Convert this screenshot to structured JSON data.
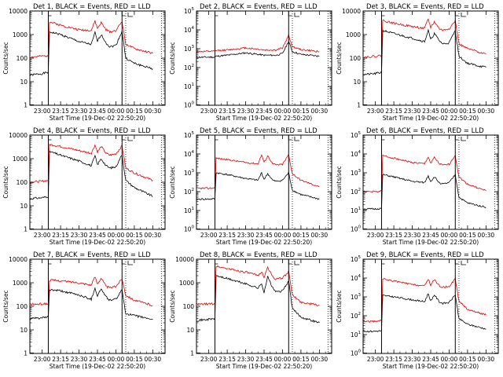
{
  "xlabel": "Start Time (19-Dec-02 22:50:20)",
  "ylabel": "Counts/sec",
  "xticks": [
    "23:00",
    "23:15",
    "23:30",
    "23:45",
    "00:00",
    "00:15",
    "00:30"
  ],
  "series_names": [
    "Events",
    "LLD"
  ],
  "colors": {
    "events": "#000000",
    "lld": "#e00000"
  },
  "chart_data": [
    {
      "type": "line",
      "title": "Det 1, BLACK = Events, RED = LLD",
      "ylim": [
        1,
        10000
      ],
      "log": true,
      "ytick_style": "plain",
      "yticks": [
        "1",
        "10",
        "100",
        "1000",
        "10000"
      ],
      "x": [
        "22:50",
        "23:00",
        "23:05",
        "23:06",
        "23:15",
        "23:30",
        "23:40",
        "23:43",
        "23:45",
        "23:48",
        "23:52",
        "23:55",
        "00:00",
        "00:05",
        "00:08",
        "00:15",
        "00:30"
      ],
      "series": [
        {
          "name": "Events",
          "values": [
            19,
            22,
            25,
            1300,
            1000,
            500,
            380,
            1200,
            520,
            1000,
            450,
            300,
            350,
            1400,
            100,
            60,
            35
          ]
        },
        {
          "name": "LLD",
          "values": [
            110,
            120,
            130,
            3500,
            2500,
            1600,
            1500,
            3800,
            1800,
            3200,
            1600,
            1300,
            1500,
            3600,
            400,
            250,
            160
          ]
        }
      ]
    },
    {
      "type": "line",
      "title": "Det 2, BLACK = Events, RED = LLD",
      "ylim": [
        1,
        100000
      ],
      "log": true,
      "ytick_style": "exp",
      "yticks": [
        "10^0",
        "10^1",
        "10^2",
        "10^3",
        "10^4",
        "10^5"
      ],
      "x": [
        "22:50",
        "23:05",
        "23:06",
        "23:15",
        "23:30",
        "23:40",
        "23:45",
        "23:55",
        "00:00",
        "00:05",
        "00:08",
        "00:15",
        "00:30"
      ],
      "series": [
        {
          "name": "Events",
          "values": [
            350,
            360,
            400,
            450,
            600,
            500,
            450,
            450,
            550,
            2500,
            700,
            500,
            400
          ]
        },
        {
          "name": "LLD",
          "values": [
            700,
            720,
            800,
            850,
            1100,
            950,
            850,
            850,
            1100,
            5000,
            1300,
            900,
            700
          ]
        }
      ]
    },
    {
      "type": "line",
      "title": "Det 3, BLACK = Events, RED = LLD",
      "ylim": [
        1,
        10000
      ],
      "log": true,
      "ytick_style": "plain",
      "yticks": [
        "1",
        "10",
        "100",
        "1000",
        "10000"
      ],
      "x": [
        "22:50",
        "23:00",
        "23:05",
        "23:06",
        "23:15",
        "23:30",
        "23:40",
        "23:43",
        "23:45",
        "23:48",
        "23:52",
        "23:55",
        "00:00",
        "00:05",
        "00:08",
        "00:15",
        "00:30"
      ],
      "series": [
        {
          "name": "Events",
          "values": [
            20,
            22,
            25,
            1500,
            1100,
            700,
            500,
            1500,
            600,
            1100,
            550,
            400,
            450,
            1500,
            120,
            60,
            40
          ]
        },
        {
          "name": "LLD",
          "values": [
            110,
            120,
            130,
            4000,
            3000,
            2200,
            1800,
            4500,
            2000,
            3500,
            1800,
            1500,
            1800,
            3800,
            400,
            250,
            150
          ]
        }
      ]
    },
    {
      "type": "line",
      "title": "Det 4, BLACK = Events, RED = LLD",
      "ylim": [
        1,
        10000
      ],
      "log": true,
      "ytick_style": "plain",
      "yticks": [
        "1",
        "10",
        "100",
        "1000",
        "10000"
      ],
      "x": [
        "22:50",
        "23:00",
        "23:05",
        "23:06",
        "23:15",
        "23:30",
        "23:40",
        "23:43",
        "23:45",
        "23:48",
        "23:52",
        "23:55",
        "00:00",
        "00:05",
        "00:08",
        "00:15",
        "00:30"
      ],
      "series": [
        {
          "name": "Events",
          "values": [
            20,
            22,
            25,
            2000,
            1400,
            800,
            500,
            1300,
            550,
            1000,
            500,
            400,
            450,
            1500,
            120,
            60,
            25
          ]
        },
        {
          "name": "LLD",
          "values": [
            100,
            110,
            120,
            4000,
            3300,
            2200,
            1700,
            3800,
            1900,
            3300,
            1700,
            1400,
            1600,
            3500,
            400,
            250,
            120
          ]
        }
      ]
    },
    {
      "type": "line",
      "title": "Det 5, BLACK = Events, RED = LLD",
      "ylim": [
        1,
        100000
      ],
      "log": true,
      "ytick_style": "exp",
      "yticks": [
        "10^0",
        "10^1",
        "10^2",
        "10^3",
        "10^4",
        "10^5"
      ],
      "x": [
        "22:50",
        "23:00",
        "23:05",
        "23:06",
        "23:15",
        "23:30",
        "23:40",
        "23:43",
        "23:45",
        "23:48",
        "23:52",
        "23:55",
        "00:00",
        "00:05",
        "00:08",
        "00:15",
        "00:30"
      ],
      "series": [
        {
          "name": "Events",
          "values": [
            40,
            40,
            42,
            1000,
            800,
            500,
            400,
            1000,
            450,
            900,
            400,
            350,
            400,
            1000,
            120,
            70,
            40
          ]
        },
        {
          "name": "LLD",
          "values": [
            150,
            150,
            160,
            6000,
            5000,
            3500,
            3000,
            9000,
            3500,
            8000,
            3000,
            2600,
            2800,
            9000,
            900,
            400,
            180
          ]
        }
      ]
    },
    {
      "type": "line",
      "title": "Det 6, BLACK = Events, RED = LLD",
      "ylim": [
        1,
        100000
      ],
      "log": true,
      "ytick_style": "exp",
      "yticks": [
        "10^0",
        "10^1",
        "10^2",
        "10^3",
        "10^4",
        "10^5"
      ],
      "x": [
        "22:50",
        "23:00",
        "23:05",
        "23:06",
        "23:15",
        "23:30",
        "23:40",
        "23:43",
        "23:45",
        "23:48",
        "23:52",
        "23:55",
        "00:00",
        "00:05",
        "00:08",
        "00:15",
        "00:30"
      ],
      "series": [
        {
          "name": "Events",
          "values": [
            12,
            12,
            13,
            800,
            600,
            350,
            300,
            700,
            350,
            600,
            300,
            250,
            300,
            800,
            50,
            25,
            15
          ]
        },
        {
          "name": "LLD",
          "values": [
            100,
            100,
            105,
            8000,
            6000,
            3500,
            3000,
            7000,
            3200,
            6500,
            3000,
            2500,
            2800,
            8500,
            600,
            250,
            110
          ]
        }
      ]
    },
    {
      "type": "line",
      "title": "Det 7, BLACK = Events, RED = LLD",
      "ylim": [
        1,
        10000
      ],
      "log": true,
      "ytick_style": "plain",
      "yticks": [
        "1",
        "10",
        "100",
        "1000",
        "10000"
      ],
      "x": [
        "22:50",
        "23:00",
        "23:05",
        "23:06",
        "23:15",
        "23:30",
        "23:40",
        "23:43",
        "23:45",
        "23:48",
        "23:52",
        "23:55",
        "00:00",
        "00:05",
        "00:08",
        "00:15",
        "00:30"
      ],
      "series": [
        {
          "name": "Events",
          "values": [
            30,
            32,
            35,
            500,
            450,
            300,
            200,
            600,
            280,
            550,
            250,
            180,
            200,
            500,
            50,
            40,
            28
          ]
        },
        {
          "name": "LLD",
          "values": [
            120,
            125,
            130,
            1300,
            1200,
            1000,
            800,
            1800,
            900,
            1600,
            700,
            600,
            700,
            1500,
            300,
            180,
            110
          ]
        }
      ]
    },
    {
      "type": "line",
      "title": "Det 8, BLACK = Events, RED = LLD",
      "ylim": [
        1,
        10000
      ],
      "log": true,
      "ytick_style": "plain",
      "yticks": [
        "1",
        "10",
        "100",
        "1000",
        "10000"
      ],
      "x": [
        "22:50",
        "23:00",
        "23:05",
        "23:06",
        "23:15",
        "23:30",
        "23:40",
        "23:43",
        "23:45",
        "23:48",
        "23:52",
        "23:55",
        "00:00",
        "00:05",
        "00:08",
        "00:15",
        "00:30"
      ],
      "series": [
        {
          "name": "Events",
          "values": [
            25,
            28,
            30,
            2000,
            1500,
            900,
            600,
            900,
            400,
            1800,
            600,
            400,
            450,
            1200,
            80,
            35,
            20
          ]
        },
        {
          "name": "LLD",
          "values": [
            120,
            125,
            130,
            5000,
            4000,
            2800,
            2000,
            3000,
            1700,
            4500,
            1800,
            1400,
            1600,
            3000,
            300,
            150,
            110
          ]
        }
      ]
    },
    {
      "type": "line",
      "title": "Det 9, BLACK = Events, RED = LLD",
      "ylim": [
        1,
        100000
      ],
      "log": true,
      "ytick_style": "exp",
      "yticks": [
        "10^0",
        "10^1",
        "10^2",
        "10^3",
        "10^4",
        "10^5"
      ],
      "x": [
        "22:50",
        "23:00",
        "23:05",
        "23:06",
        "23:15",
        "23:30",
        "23:40",
        "23:43",
        "23:45",
        "23:48",
        "23:52",
        "23:55",
        "00:00",
        "00:05",
        "00:08",
        "00:15",
        "00:30"
      ],
      "series": [
        {
          "name": "Events",
          "values": [
            15,
            15,
            16,
            1200,
            1000,
            700,
            550,
            1500,
            600,
            1300,
            550,
            450,
            500,
            1300,
            70,
            35,
            20
          ]
        },
        {
          "name": "LLD",
          "values": [
            50,
            50,
            55,
            9000,
            7000,
            4500,
            3800,
            9000,
            4200,
            8500,
            3800,
            3200,
            3600,
            9000,
            600,
            220,
            110
          ]
        }
      ]
    }
  ]
}
